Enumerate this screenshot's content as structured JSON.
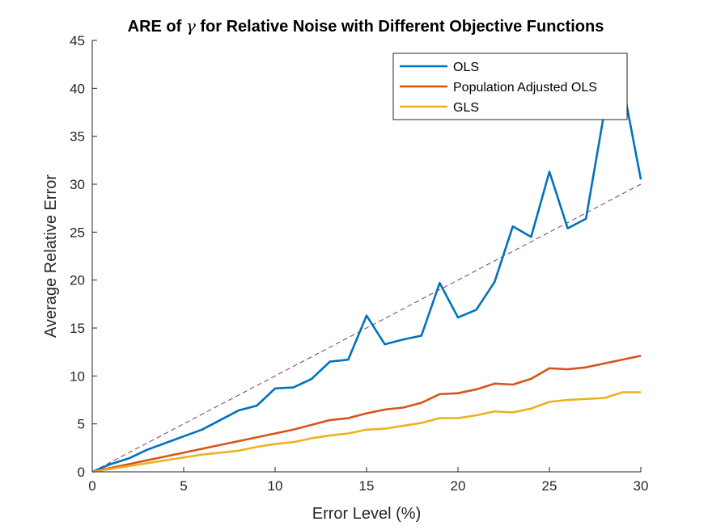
{
  "chart_data": {
    "type": "line",
    "title_prefix": "ARE of ",
    "title_symbol": "γ",
    "title_suffix": " for Relative Noise with Different Objective Functions",
    "xlabel": "Error Level (%)",
    "ylabel": "Average Relative Error",
    "xlim": [
      0,
      30
    ],
    "ylim": [
      0,
      45
    ],
    "xticks": [
      0,
      5,
      10,
      15,
      20,
      25,
      30
    ],
    "yticks": [
      0,
      5,
      10,
      15,
      20,
      25,
      30,
      35,
      40,
      45
    ],
    "grid": false,
    "legend_position": "top-right",
    "x": [
      0,
      1,
      2,
      3,
      4,
      5,
      6,
      7,
      8,
      9,
      10,
      11,
      12,
      13,
      14,
      15,
      16,
      17,
      18,
      19,
      20,
      21,
      22,
      23,
      24,
      25,
      26,
      27,
      28,
      29,
      30
    ],
    "series": [
      {
        "name": "OLS",
        "color": "#0072BD",
        "values": [
          0,
          0.8,
          1.4,
          2.3,
          3.0,
          3.7,
          4.4,
          5.4,
          6.4,
          6.9,
          8.7,
          8.8,
          9.7,
          11.5,
          11.7,
          16.3,
          13.3,
          13.8,
          14.2,
          19.7,
          16.1,
          16.9,
          19.8,
          25.6,
          24.5,
          31.3,
          25.4,
          26.4,
          37.5,
          40.5,
          30.5
        ]
      },
      {
        "name": "Population Adjusted OLS",
        "color": "#D95319",
        "values": [
          0,
          0.4,
          0.8,
          1.2,
          1.6,
          2.0,
          2.4,
          2.8,
          3.2,
          3.6,
          4.0,
          4.4,
          4.9,
          5.4,
          5.6,
          6.1,
          6.5,
          6.7,
          7.2,
          8.1,
          8.2,
          8.6,
          9.2,
          9.1,
          9.7,
          10.8,
          10.7,
          10.9,
          11.3,
          11.7,
          12.1
        ]
      },
      {
        "name": "GLS",
        "color": "#EDB120",
        "values": [
          0,
          0.3,
          0.6,
          0.9,
          1.2,
          1.5,
          1.8,
          2.0,
          2.2,
          2.6,
          2.9,
          3.1,
          3.5,
          3.8,
          4.0,
          4.4,
          4.5,
          4.8,
          5.1,
          5.6,
          5.6,
          5.9,
          6.3,
          6.2,
          6.6,
          7.3,
          7.5,
          7.6,
          7.7,
          8.3,
          8.3
        ]
      }
    ],
    "reference_line": {
      "color": "#7E2F8E",
      "style": "dashed",
      "values": [
        0,
        30
      ]
    }
  }
}
